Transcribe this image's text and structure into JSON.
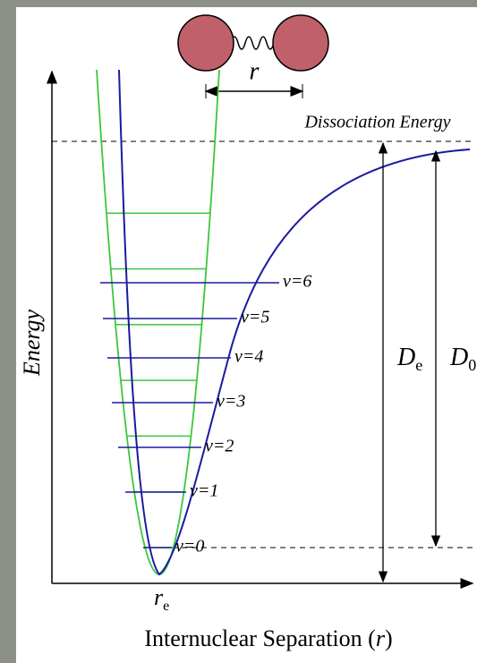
{
  "header": {
    "molecule_label": "r",
    "dissociation_label": "Dissociation Energy"
  },
  "axes": {
    "y_label": "Energy",
    "x_label": {
      "text": "Internuclear Separation (",
      "variable": "r",
      "close": ")"
    },
    "origin_label": {
      "main": "r",
      "sub": "e"
    }
  },
  "levels": [
    "v=0",
    "v=1",
    "v=2",
    "v=3",
    "v=4",
    "v=5",
    "v=6"
  ],
  "energies": {
    "well_depth": {
      "main": "D",
      "sub": "e"
    },
    "bond_energy": {
      "main": "D",
      "sub": "0"
    }
  }
}
